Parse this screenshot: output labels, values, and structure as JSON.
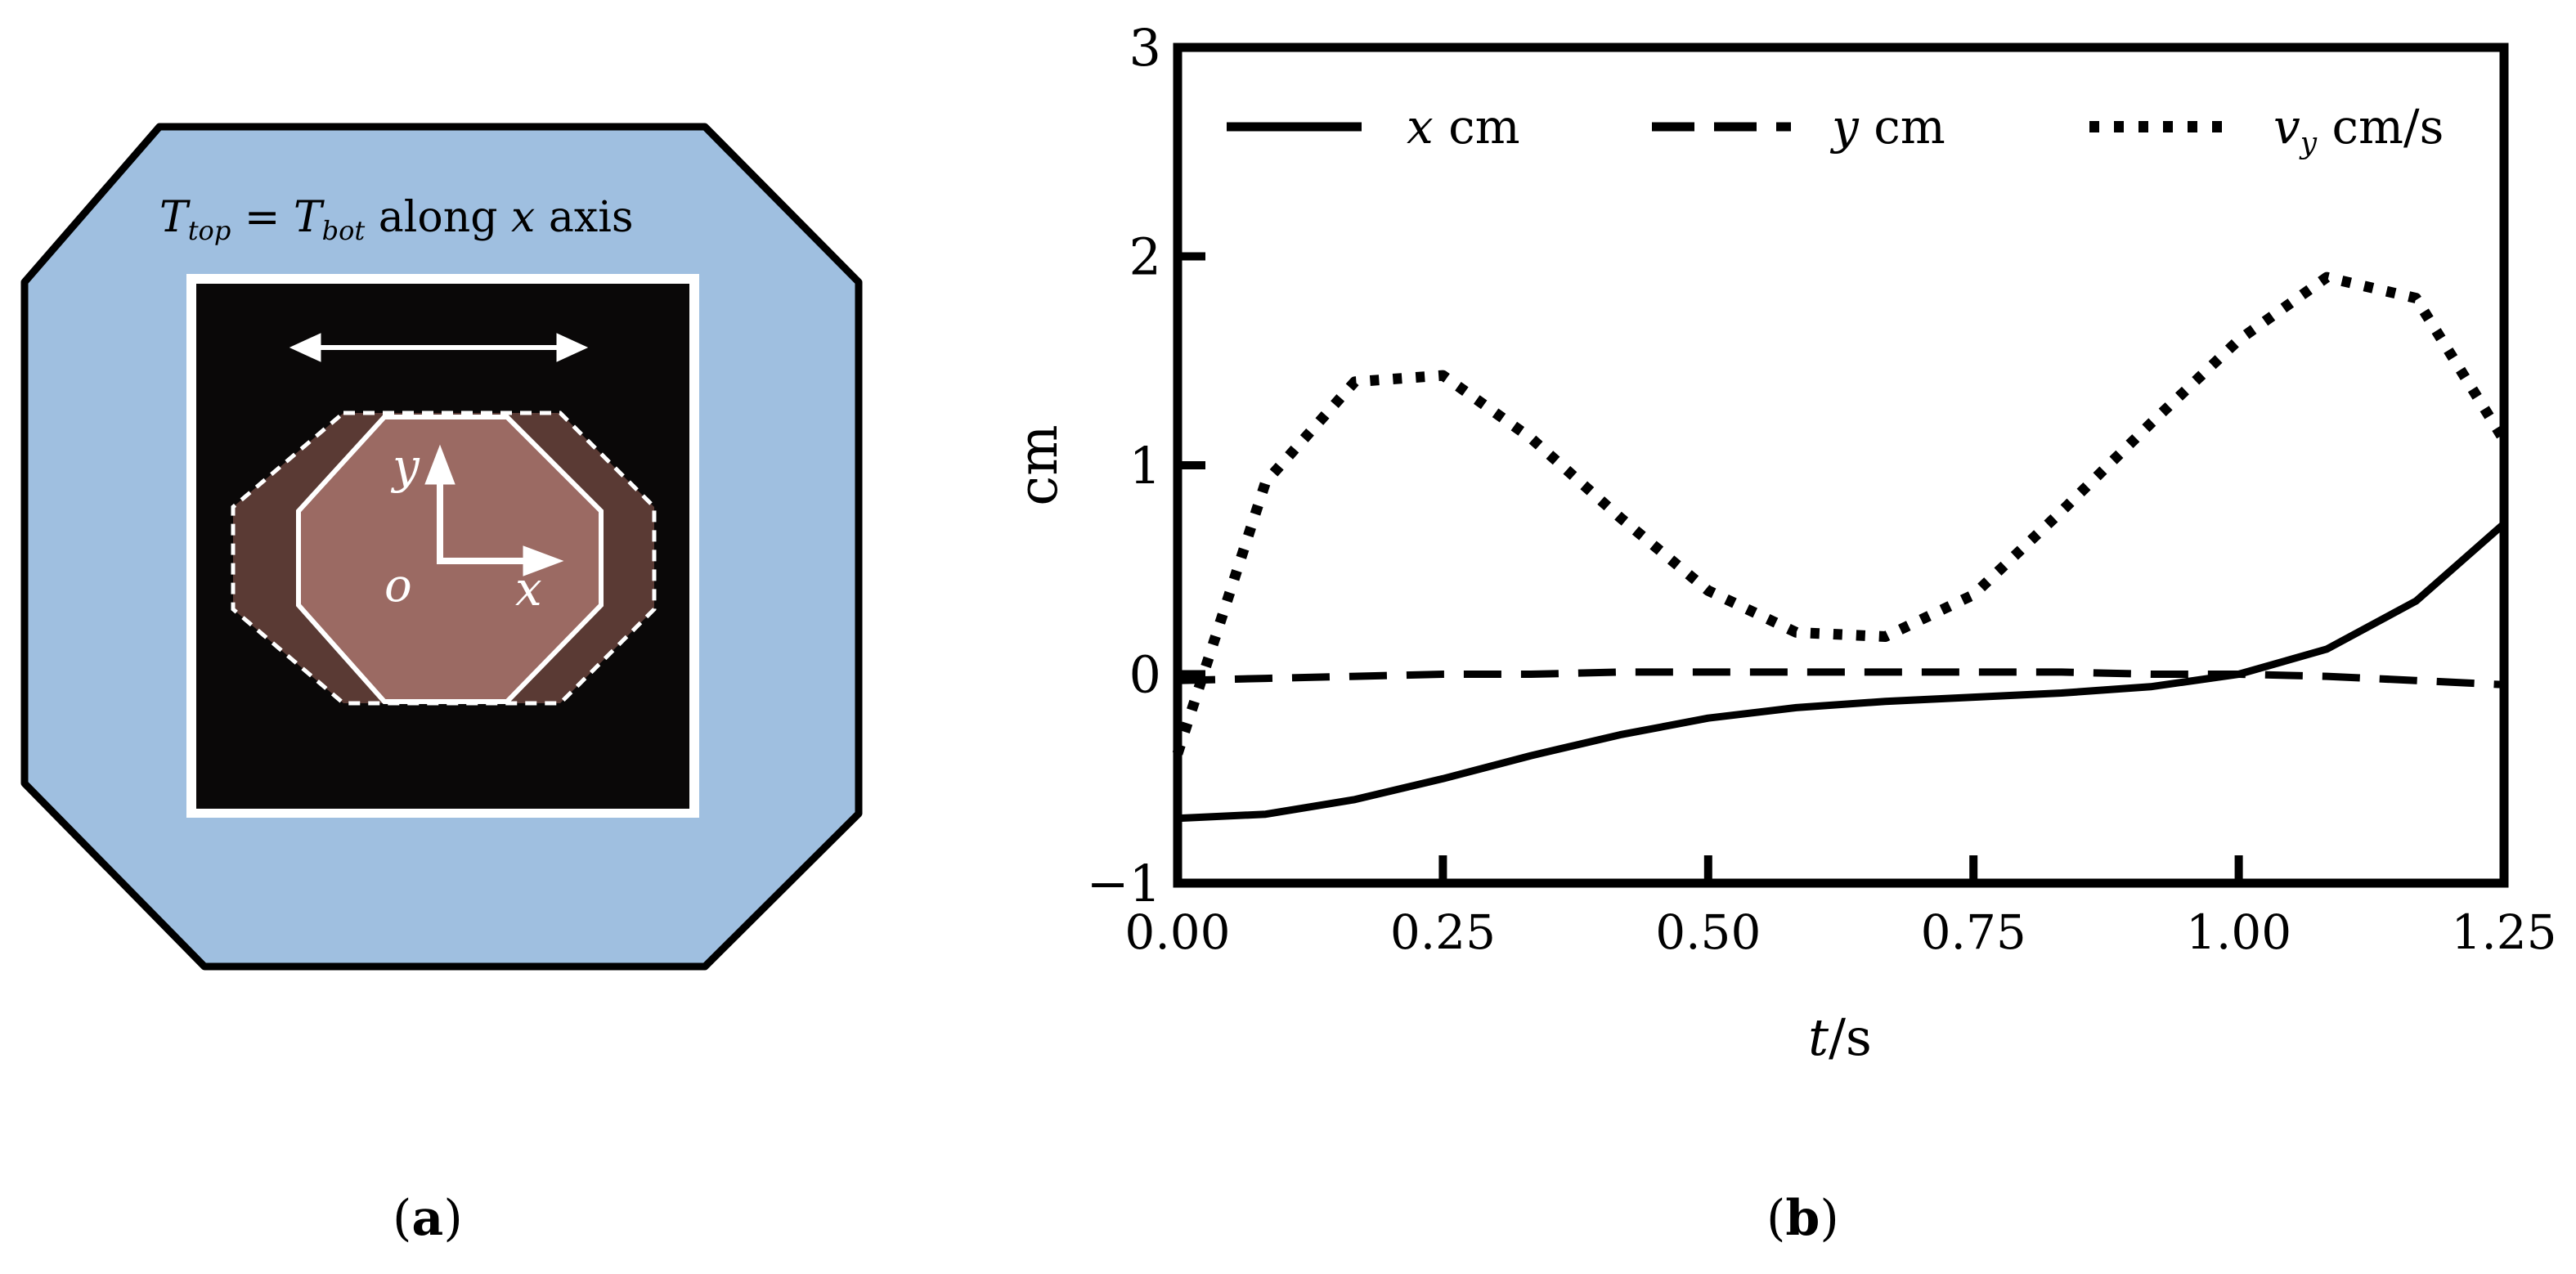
{
  "colors": {
    "background": "#ffffff",
    "panel_blue": "#9fbfe0",
    "sample_black": "#0a0808",
    "sample_copper": "#9b6a63",
    "sample_copper_dark": "#5a3a34",
    "ink": "#000000",
    "overlay_white": "#ffffff"
  },
  "panel_a": {
    "caption_open": "(",
    "caption_letter": "a",
    "caption_close": ")",
    "title_T1": "T",
    "title_sub1": "top",
    "title_eq": " = ",
    "title_T2": "T",
    "title_sub2": "bot",
    "title_along": " along ",
    "title_x": "x",
    "title_axis": " axis",
    "label_y": "y",
    "label_x": "x",
    "label_o": "o",
    "icons": [
      "double-arrow-icon",
      "y-arrow-icon",
      "x-arrow-icon"
    ]
  },
  "panel_b": {
    "caption_open": "(",
    "caption_letter": "b",
    "caption_close": ")",
    "legend": [
      {
        "var": "x",
        "sub": "",
        "unit": " cm",
        "style": "solid"
      },
      {
        "var": "y",
        "sub": "",
        "unit": " cm",
        "style": "dashed"
      },
      {
        "var": "v",
        "sub": "y",
        "unit": " cm/s",
        "style": "dotted"
      }
    ],
    "xlabel_var": "t",
    "xlabel_unit": "/s",
    "ylabel": "cm"
  },
  "chart_data": {
    "type": "line",
    "x_ticks": [
      "0.00",
      "0.25",
      "0.50",
      "0.75",
      "1.00",
      "1.25"
    ],
    "y_ticks": [
      "−1",
      "0",
      "1",
      "2",
      "3"
    ],
    "xlim": [
      0,
      1.25
    ],
    "ylim": [
      -1,
      3
    ],
    "grid": false,
    "legend_position": "top",
    "series": [
      {
        "name": "x cm",
        "style": "solid",
        "x": [
          0,
          0.083,
          0.167,
          0.25,
          0.333,
          0.417,
          0.5,
          0.583,
          0.667,
          0.75,
          0.833,
          0.917,
          1.0,
          1.083,
          1.167,
          1.25
        ],
        "y": [
          -0.69,
          -0.67,
          -0.6,
          -0.5,
          -0.39,
          -0.29,
          -0.21,
          -0.16,
          -0.13,
          -0.11,
          -0.09,
          -0.06,
          0.0,
          0.12,
          0.35,
          0.72
        ]
      },
      {
        "name": "y cm",
        "style": "dashed",
        "x": [
          0,
          0.083,
          0.167,
          0.25,
          0.333,
          0.417,
          0.5,
          0.583,
          0.667,
          0.75,
          0.833,
          0.917,
          1.0,
          1.083,
          1.167,
          1.25
        ],
        "y": [
          -0.03,
          -0.02,
          -0.01,
          0.0,
          0.0,
          0.01,
          0.01,
          0.01,
          0.01,
          0.01,
          0.01,
          0.0,
          0.0,
          -0.01,
          -0.03,
          -0.05
        ]
      },
      {
        "name": "v_y cm/s",
        "style": "dotted",
        "x": [
          0,
          0.083,
          0.167,
          0.25,
          0.333,
          0.417,
          0.5,
          0.583,
          0.667,
          0.75,
          0.833,
          0.917,
          1.0,
          1.083,
          1.167,
          1.25
        ],
        "y": [
          -0.38,
          0.92,
          1.4,
          1.43,
          1.13,
          0.75,
          0.4,
          0.2,
          0.18,
          0.38,
          0.78,
          1.2,
          1.6,
          1.9,
          1.8,
          1.12
        ]
      }
    ]
  }
}
